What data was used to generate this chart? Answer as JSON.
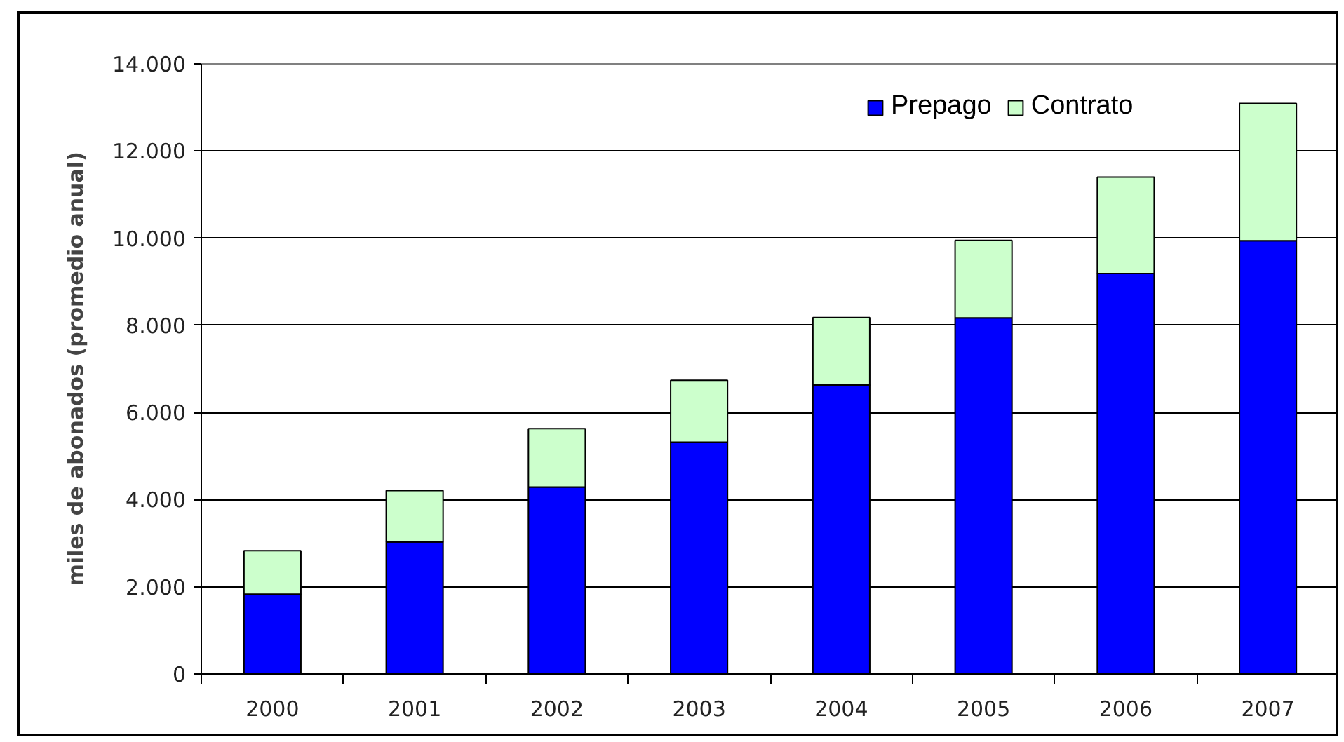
{
  "chart_data": {
    "type": "bar",
    "stacked": true,
    "categories": [
      "2000",
      "2001",
      "2002",
      "2003",
      "2004",
      "2005",
      "2006",
      "2007"
    ],
    "series": [
      {
        "name": "Prepago",
        "color": "#0000ff",
        "values": [
          1830,
          3030,
          4290,
          5320,
          6630,
          8170,
          9190,
          9940
        ]
      },
      {
        "name": "Contrato",
        "color": "#ccffcc",
        "values": [
          1000,
          1180,
          1340,
          1420,
          1550,
          1780,
          2210,
          3150
        ]
      }
    ],
    "ylabel": "miles de abonados (promedio anual)",
    "ylim": [
      0,
      14000
    ],
    "yticks": [
      0,
      {
        "value": 2000,
        "label": "2.000"
      },
      {
        "value": 4000,
        "label": "4.000"
      },
      {
        "value": 6000,
        "label": "6.000"
      },
      {
        "value": 8000,
        "label": "8.000"
      },
      {
        "value": 10000,
        "label": "10.000"
      },
      {
        "value": 12000,
        "label": "12.000"
      },
      {
        "value": 14000,
        "label": "14.000"
      }
    ],
    "grid": "y",
    "legend": "top right"
  }
}
